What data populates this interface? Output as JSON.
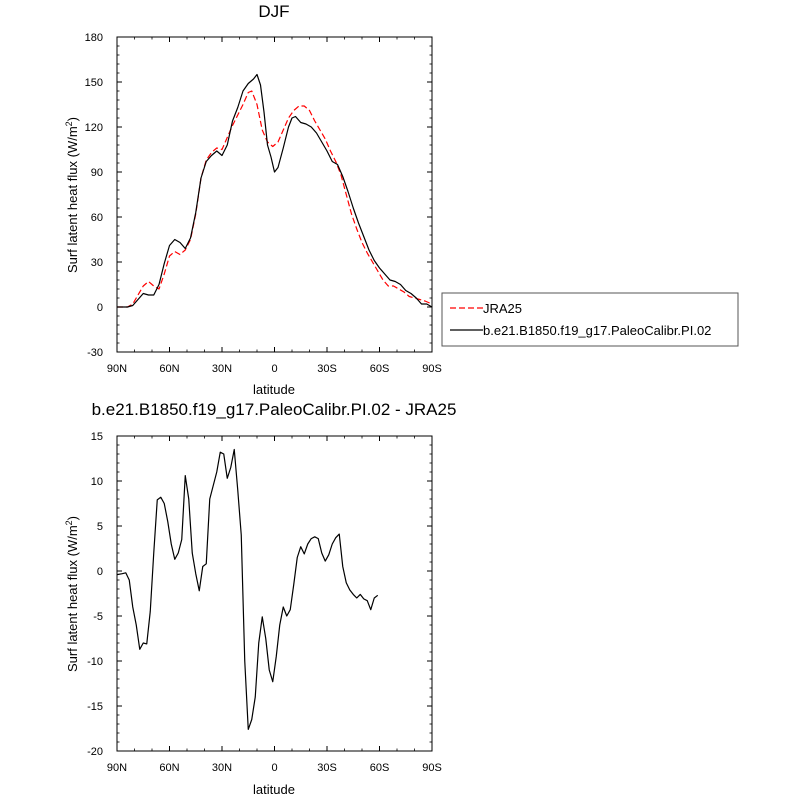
{
  "chart_data": [
    {
      "type": "line",
      "title": "DJF",
      "xlabel": "latitude",
      "ylabel_main": "Surf latent heat flux (W/m",
      "ylabel_sup": "2",
      "ylabel_close": ")",
      "xlim": [
        90,
        -90
      ],
      "ylim": [
        -30,
        180
      ],
      "yticks": [
        -30,
        0,
        30,
        60,
        90,
        120,
        150,
        180
      ],
      "xticks": [
        90,
        60,
        30,
        0,
        -30,
        -60,
        -90
      ],
      "xtick_labels": [
        "90N",
        "60N",
        "30N",
        "0",
        "30S",
        "60S",
        "90S"
      ],
      "legend": {
        "placement": "right-outside"
      },
      "series": [
        {
          "name": "JRA25",
          "color": "#ff0000",
          "dash": "dashed",
          "points": [
            [
              90,
              0
            ],
            [
              87,
              0
            ],
            [
              84,
              0
            ],
            [
              81,
              2
            ],
            [
              78,
              8
            ],
            [
              75,
              14
            ],
            [
              72,
              17
            ],
            [
              69,
              14
            ],
            [
              66,
              12
            ],
            [
              63,
              22
            ],
            [
              60,
              34
            ],
            [
              57,
              37
            ],
            [
              54,
              35
            ],
            [
              51,
              38
            ],
            [
              48,
              45
            ],
            [
              45,
              62
            ],
            [
              42,
              86
            ],
            [
              39,
              98
            ],
            [
              36,
              103
            ],
            [
              33,
              106
            ],
            [
              30,
              105
            ],
            [
              27,
              113
            ],
            [
              24,
              121
            ],
            [
              21,
              128
            ],
            [
              18,
              135
            ],
            [
              15,
              143
            ],
            [
              13,
              144
            ],
            [
              10,
              135
            ],
            [
              7,
              118
            ],
            [
              4,
              110
            ],
            [
              1,
              107
            ],
            [
              -2,
              110
            ],
            [
              -5,
              118
            ],
            [
              -8,
              126
            ],
            [
              -11,
              131
            ],
            [
              -14,
              134
            ],
            [
              -17,
              134
            ],
            [
              -20,
              131
            ],
            [
              -23,
              124
            ],
            [
              -26,
              118
            ],
            [
              -29,
              112
            ],
            [
              -32,
              104
            ],
            [
              -35,
              97
            ],
            [
              -38,
              88
            ],
            [
              -41,
              75
            ],
            [
              -44,
              62
            ],
            [
              -47,
              52
            ],
            [
              -50,
              43
            ],
            [
              -53,
              36
            ],
            [
              -56,
              30
            ],
            [
              -59,
              24
            ],
            [
              -62,
              18
            ],
            [
              -65,
              14
            ],
            [
              -68,
              14
            ],
            [
              -71,
              12
            ],
            [
              -74,
              10
            ],
            [
              -77,
              7
            ],
            [
              -80,
              6
            ],
            [
              -83,
              5
            ],
            [
              -86,
              4
            ],
            [
              -90,
              2
            ]
          ]
        },
        {
          "name": "b.e21.B1850.f19_g17.PaleoCalibr.PI.02",
          "color": "#000000",
          "dash": "solid",
          "points": [
            [
              90,
              0
            ],
            [
              87,
              0
            ],
            [
              84,
              0
            ],
            [
              81,
              1
            ],
            [
              78,
              5
            ],
            [
              75,
              9
            ],
            [
              72,
              8
            ],
            [
              69,
              8
            ],
            [
              66,
              15
            ],
            [
              63,
              29
            ],
            [
              60,
              41
            ],
            [
              57,
              45
            ],
            [
              54,
              43
            ],
            [
              51,
              39
            ],
            [
              48,
              46
            ],
            [
              45,
              63
            ],
            [
              42,
              86
            ],
            [
              39,
              97
            ],
            [
              36,
              101
            ],
            [
              33,
              104
            ],
            [
              30,
              101
            ],
            [
              27,
              108
            ],
            [
              24,
              124
            ],
            [
              21,
              133
            ],
            [
              18,
              144
            ],
            [
              15,
              149
            ],
            [
              12,
              152
            ],
            [
              10,
              155
            ],
            [
              8,
              148
            ],
            [
              6,
              130
            ],
            [
              4,
              108
            ],
            [
              2,
              100
            ],
            [
              0,
              90
            ],
            [
              -2,
              93
            ],
            [
              -5,
              106
            ],
            [
              -8,
              120
            ],
            [
              -10,
              126
            ],
            [
              -12,
              127
            ],
            [
              -15,
              123
            ],
            [
              -18,
              122
            ],
            [
              -21,
              120
            ],
            [
              -24,
              116
            ],
            [
              -27,
              110
            ],
            [
              -30,
              104
            ],
            [
              -33,
              97
            ],
            [
              -36,
              95
            ],
            [
              -39,
              87
            ],
            [
              -42,
              77
            ],
            [
              -45,
              66
            ],
            [
              -48,
              56
            ],
            [
              -51,
              47
            ],
            [
              -54,
              38
            ],
            [
              -57,
              31
            ],
            [
              -60,
              26
            ],
            [
              -63,
              22
            ],
            [
              -66,
              18
            ],
            [
              -69,
              17
            ],
            [
              -72,
              15
            ],
            [
              -75,
              11
            ],
            [
              -78,
              9
            ],
            [
              -81,
              6
            ],
            [
              -84,
              2
            ],
            [
              -87,
              2
            ],
            [
              -90,
              0
            ]
          ]
        }
      ]
    },
    {
      "type": "line",
      "title": "b.e21.B1850.f19_g17.PaleoCalibr.PI.02 - JRA25",
      "xlabel": "latitude",
      "ylabel_main": "Surf latent heat flux (W/m",
      "ylabel_sup": "2",
      "ylabel_close": ")",
      "xlim": [
        90,
        -90
      ],
      "ylim": [
        -20,
        15
      ],
      "yticks": [
        -20,
        -15,
        -10,
        -5,
        0,
        5,
        10,
        15
      ],
      "xticks": [
        90,
        60,
        30,
        0,
        -30,
        -60,
        -90
      ],
      "xtick_labels": [
        "90N",
        "60N",
        "30N",
        "0",
        "30S",
        "60S",
        "90S"
      ],
      "series": [
        {
          "color": "#000000",
          "dash": "solid",
          "points": [
            [
              90,
              -0.4
            ],
            [
              87,
              -0.3
            ],
            [
              85,
              -0.2
            ],
            [
              83,
              -1.0
            ],
            [
              81,
              -4.0
            ],
            [
              79,
              -6.0
            ],
            [
              77,
              -8.7
            ],
            [
              75,
              -8.0
            ],
            [
              73,
              -8.1
            ],
            [
              71,
              -4.5
            ],
            [
              69,
              2.0
            ],
            [
              67,
              7.9
            ],
            [
              65,
              8.2
            ],
            [
              63,
              7.5
            ],
            [
              61,
              5.5
            ],
            [
              59,
              3.0
            ],
            [
              57,
              1.3
            ],
            [
              55,
              2.0
            ],
            [
              53,
              3.5
            ],
            [
              51,
              10.6
            ],
            [
              49,
              8.0
            ],
            [
              47,
              2.0
            ],
            [
              45,
              -0.3
            ],
            [
              43,
              -2.2
            ],
            [
              41,
              0.5
            ],
            [
              39,
              0.8
            ],
            [
              37,
              8.0
            ],
            [
              35,
              9.5
            ],
            [
              33,
              11.0
            ],
            [
              31,
              13.2
            ],
            [
              29,
              13.0
            ],
            [
              27,
              10.3
            ],
            [
              25,
              11.5
            ],
            [
              23,
              13.5
            ],
            [
              21,
              9.0
            ],
            [
              19,
              4.0
            ],
            [
              17,
              -10.0
            ],
            [
              15,
              -17.6
            ],
            [
              13,
              -16.5
            ],
            [
              11,
              -14.0
            ],
            [
              9,
              -8.0
            ],
            [
              7,
              -5.1
            ],
            [
              5,
              -7.5
            ],
            [
              3,
              -11.0
            ],
            [
              1,
              -12.3
            ],
            [
              -1,
              -9.5
            ],
            [
              -3,
              -6.0
            ],
            [
              -5,
              -4.0
            ],
            [
              -7,
              -5.0
            ],
            [
              -9,
              -4.3
            ],
            [
              -11,
              -1.5
            ],
            [
              -13,
              1.5
            ],
            [
              -15,
              2.7
            ],
            [
              -17,
              1.9
            ],
            [
              -19,
              3.0
            ],
            [
              -21,
              3.6
            ],
            [
              -23,
              3.8
            ],
            [
              -25,
              3.6
            ],
            [
              -27,
              2.0
            ],
            [
              -29,
              1.1
            ],
            [
              -31,
              1.8
            ],
            [
              -33,
              3.0
            ],
            [
              -35,
              3.7
            ],
            [
              -37,
              4.1
            ],
            [
              -39,
              0.5
            ],
            [
              -41,
              -1.3
            ],
            [
              -43,
              -2.1
            ],
            [
              -45,
              -2.6
            ],
            [
              -47,
              -3.0
            ],
            [
              -49,
              -2.6
            ],
            [
              -51,
              -3.1
            ],
            [
              -53,
              -3.3
            ],
            [
              -55,
              -4.3
            ],
            [
              -57,
              -3.0
            ],
            [
              -59,
              -2.7
            ]
          ]
        }
      ]
    }
  ]
}
